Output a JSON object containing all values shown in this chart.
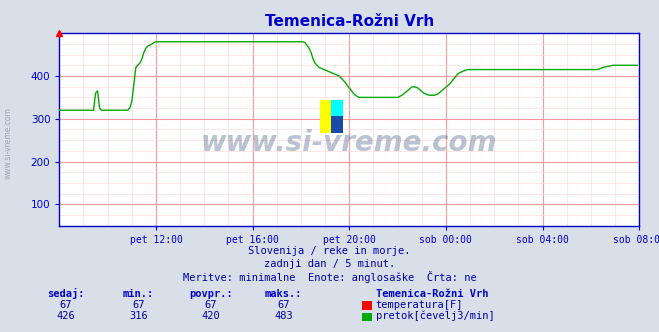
{
  "title": "Temenica-Rožni Vrh",
  "bg_color": "#d8dfe8",
  "plot_bg_color": "#ffffff",
  "line_color_flow": "#00aa00",
  "line_color_temp": "#cc0000",
  "grid_color_major": "#ff9999",
  "grid_color_minor": "#ffdddd",
  "axis_color": "#0000cc",
  "title_color": "#0000cc",
  "text_color": "#0000aa",
  "xlim": [
    0,
    288
  ],
  "ylim": [
    50,
    500
  ],
  "yticks": [
    100,
    200,
    300,
    400
  ],
  "xtick_labels": [
    "pet 12:00",
    "pet 16:00",
    "pet 20:00",
    "sob 00:00",
    "sob 04:00",
    "sob 08:00"
  ],
  "xtick_positions": [
    48,
    96,
    144,
    192,
    240,
    288
  ],
  "watermark": "www.si-vreme.com",
  "sub1": "Slovenija / reke in morje.",
  "sub2": "zadnji dan / 5 minut.",
  "sub3": "Meritve: minimalne  Enote: anglosaške  Črta: ne",
  "legend_title": "Temenica-Rožni Vrh",
  "legend_temp_label": "temperatura[F]",
  "legend_flow_label": "pretok[čevelj3/min]",
  "table_headers": [
    "sedaj:",
    "min.:",
    "povpr.:",
    "maks.:"
  ],
  "table_temp": [
    "67",
    "67",
    "67",
    "67"
  ],
  "table_flow": [
    "426",
    "316",
    "420",
    "483"
  ],
  "flow_data": [
    320,
    320,
    320,
    320,
    320,
    320,
    320,
    320,
    320,
    320,
    320,
    320,
    320,
    320,
    320,
    320,
    320,
    320,
    360,
    365,
    325,
    320,
    320,
    320,
    320,
    320,
    320,
    320,
    320,
    320,
    320,
    320,
    320,
    320,
    320,
    325,
    340,
    380,
    420,
    425,
    430,
    440,
    455,
    465,
    470,
    472,
    475,
    478,
    480,
    480,
    480,
    480,
    480,
    480,
    480,
    480,
    480,
    480,
    480,
    480,
    480,
    480,
    480,
    480,
    480,
    480,
    480,
    480,
    480,
    480,
    480,
    480,
    480,
    480,
    480,
    480,
    480,
    480,
    480,
    480,
    480,
    480,
    480,
    480,
    480,
    480,
    480,
    480,
    480,
    480,
    480,
    480,
    480,
    480,
    480,
    480,
    480,
    480,
    480,
    480,
    480,
    480,
    480,
    480,
    480,
    480,
    480,
    480,
    480,
    480,
    480,
    480,
    480,
    480,
    480,
    480,
    480,
    480,
    480,
    480,
    480,
    480,
    478,
    472,
    465,
    455,
    440,
    430,
    425,
    420,
    418,
    416,
    414,
    412,
    410,
    408,
    406,
    404,
    402,
    400,
    395,
    390,
    385,
    378,
    372,
    366,
    360,
    355,
    352,
    350,
    350,
    350,
    350,
    350,
    350,
    350,
    350,
    350,
    350,
    350,
    350,
    350,
    350,
    350,
    350,
    350,
    350,
    350,
    350,
    352,
    355,
    358,
    362,
    366,
    370,
    374,
    375,
    374,
    372,
    368,
    364,
    360,
    358,
    356,
    355,
    355,
    355,
    356,
    358,
    362,
    366,
    370,
    374,
    378,
    382,
    388,
    394,
    400,
    405,
    408,
    410,
    412,
    414,
    415,
    415,
    415,
    415,
    415,
    415,
    415,
    415,
    415,
    415,
    415,
    415,
    415,
    415,
    415,
    415,
    415,
    415,
    415,
    415,
    415,
    415,
    415,
    415,
    415,
    415,
    415,
    415,
    415,
    415,
    415,
    415,
    415,
    415,
    415,
    415,
    415,
    415,
    415,
    415,
    415,
    415,
    415,
    415,
    415,
    415,
    415,
    415,
    415,
    415,
    415,
    415,
    415,
    415,
    415,
    415,
    415,
    415,
    415,
    415,
    415,
    415,
    415,
    415,
    415,
    416,
    418,
    420,
    421,
    422,
    423,
    424,
    425,
    425,
    425,
    425,
    425,
    425,
    425,
    425,
    425,
    425,
    425,
    425,
    425
  ]
}
